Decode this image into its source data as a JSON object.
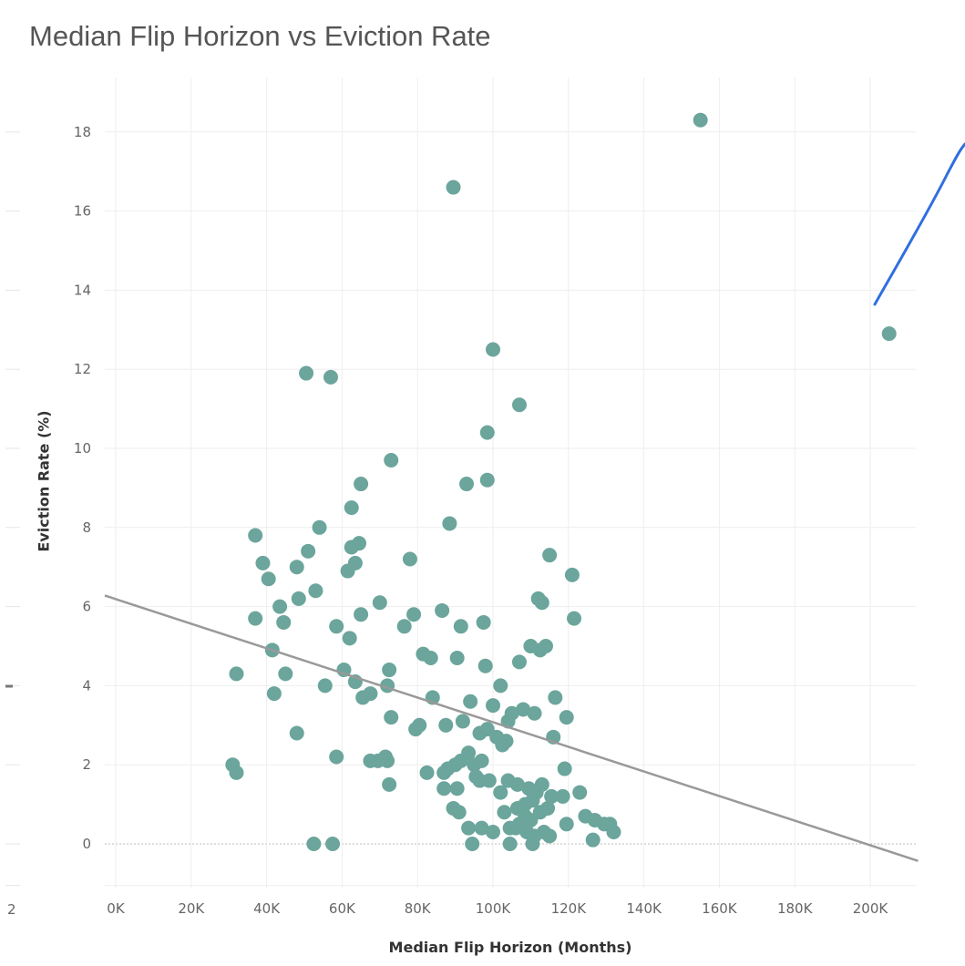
{
  "chart_data": {
    "type": "scatter",
    "title": "Median Flip Horizon vs Eviction Rate",
    "xlabel": "Median Flip Horizon (Months)",
    "ylabel": "Eviction Rate (%)",
    "xlim": [
      -2000,
      218000
    ],
    "ylim": [
      -1,
      19.5
    ],
    "grid": true,
    "x_ticks": [
      0,
      20000,
      40000,
      60000,
      80000,
      100000,
      120000,
      140000,
      160000,
      180000,
      200000
    ],
    "x_tick_labels": [
      "0K",
      "20K",
      "40K",
      "60K",
      "80K",
      "100K",
      "120K",
      "140K",
      "160K",
      "180K",
      "200K"
    ],
    "y_ticks": [
      0,
      2,
      4,
      6,
      8,
      10,
      12,
      14,
      16,
      18
    ],
    "y_tick_labels": [
      "0",
      "2",
      "4",
      "6",
      "8",
      "10",
      "12",
      "14",
      "16",
      "18"
    ],
    "marker_color": "#6ba59c",
    "trendline": {
      "color": "#999999",
      "x": [
        0,
        218000
      ],
      "y": [
        6.27,
        -0.43
      ]
    },
    "edge_labels": [
      "2"
    ],
    "points": [
      [
        155000,
        18.3
      ],
      [
        89500,
        16.6
      ],
      [
        205000,
        12.9
      ],
      [
        100000,
        12.5
      ],
      [
        50500,
        11.9
      ],
      [
        57000,
        11.8
      ],
      [
        107000,
        11.1
      ],
      [
        98500,
        10.4
      ],
      [
        73000,
        9.7
      ],
      [
        65000,
        9.1
      ],
      [
        93000,
        9.1
      ],
      [
        98500,
        9.2
      ],
      [
        62500,
        8.5
      ],
      [
        88500,
        8.1
      ],
      [
        54000,
        8.0
      ],
      [
        37000,
        7.8
      ],
      [
        64500,
        7.6
      ],
      [
        51000,
        7.4
      ],
      [
        62500,
        7.5
      ],
      [
        39000,
        7.1
      ],
      [
        63500,
        7.1
      ],
      [
        78000,
        7.2
      ],
      [
        115000,
        7.3
      ],
      [
        61500,
        6.9
      ],
      [
        48000,
        7.0
      ],
      [
        40500,
        6.7
      ],
      [
        121000,
        6.8
      ],
      [
        48500,
        6.2
      ],
      [
        43500,
        6.0
      ],
      [
        53000,
        6.4
      ],
      [
        70000,
        6.1
      ],
      [
        112000,
        6.2
      ],
      [
        113000,
        6.1
      ],
      [
        37000,
        5.7
      ],
      [
        65000,
        5.8
      ],
      [
        79000,
        5.8
      ],
      [
        86500,
        5.9
      ],
      [
        121500,
        5.7
      ],
      [
        44500,
        5.6
      ],
      [
        58500,
        5.5
      ],
      [
        76500,
        5.5
      ],
      [
        91500,
        5.5
      ],
      [
        97500,
        5.6
      ],
      [
        62000,
        5.2
      ],
      [
        110000,
        5.0
      ],
      [
        112500,
        4.9
      ],
      [
        114000,
        5.0
      ],
      [
        41500,
        4.9
      ],
      [
        81500,
        4.8
      ],
      [
        83500,
        4.7
      ],
      [
        90500,
        4.7
      ],
      [
        98000,
        4.5
      ],
      [
        107000,
        4.6
      ],
      [
        32000,
        4.3
      ],
      [
        45000,
        4.3
      ],
      [
        60500,
        4.4
      ],
      [
        63500,
        4.1
      ],
      [
        72500,
        4.4
      ],
      [
        102000,
        4.0
      ],
      [
        55500,
        4.0
      ],
      [
        72000,
        4.0
      ],
      [
        42000,
        3.8
      ],
      [
        65500,
        3.7
      ],
      [
        67500,
        3.8
      ],
      [
        84000,
        3.7
      ],
      [
        94000,
        3.6
      ],
      [
        116500,
        3.7
      ],
      [
        73000,
        3.2
      ],
      [
        79500,
        2.9
      ],
      [
        80500,
        3.0
      ],
      [
        87500,
        3.0
      ],
      [
        92000,
        3.1
      ],
      [
        96500,
        2.8
      ],
      [
        98500,
        2.9
      ],
      [
        100000,
        3.5
      ],
      [
        104000,
        3.1
      ],
      [
        105000,
        3.3
      ],
      [
        108000,
        3.4
      ],
      [
        111000,
        3.3
      ],
      [
        119500,
        3.2
      ],
      [
        48000,
        2.8
      ],
      [
        101000,
        2.7
      ],
      [
        102500,
        2.5
      ],
      [
        103500,
        2.6
      ],
      [
        116000,
        2.7
      ],
      [
        31000,
        2.0
      ],
      [
        32000,
        1.8
      ],
      [
        58500,
        2.2
      ],
      [
        67500,
        2.1
      ],
      [
        69500,
        2.1
      ],
      [
        71500,
        2.2
      ],
      [
        72000,
        2.1
      ],
      [
        90000,
        2.0
      ],
      [
        91500,
        2.1
      ],
      [
        93500,
        2.3
      ],
      [
        95000,
        2.0
      ],
      [
        97000,
        2.1
      ],
      [
        88000,
        1.9
      ],
      [
        82500,
        1.8
      ],
      [
        87000,
        1.8
      ],
      [
        72500,
        1.5
      ],
      [
        90500,
        1.4
      ],
      [
        96500,
        1.6
      ],
      [
        99000,
        1.6
      ],
      [
        104000,
        1.6
      ],
      [
        106500,
        1.5
      ],
      [
        109500,
        1.4
      ],
      [
        113000,
        1.5
      ],
      [
        119000,
        1.9
      ],
      [
        87000,
        1.4
      ],
      [
        95500,
        1.7
      ],
      [
        102000,
        1.3
      ],
      [
        111500,
        1.3
      ],
      [
        115500,
        1.2
      ],
      [
        118500,
        1.2
      ],
      [
        123000,
        1.3
      ],
      [
        89500,
        0.9
      ],
      [
        91000,
        0.8
      ],
      [
        103000,
        0.8
      ],
      [
        106500,
        0.9
      ],
      [
        108500,
        0.7
      ],
      [
        110000,
        0.6
      ],
      [
        112500,
        0.8
      ],
      [
        114500,
        0.9
      ],
      [
        124500,
        0.7
      ],
      [
        127000,
        0.6
      ],
      [
        129500,
        0.5
      ],
      [
        119500,
        0.5
      ],
      [
        93500,
        0.4
      ],
      [
        97000,
        0.4
      ],
      [
        100000,
        0.3
      ],
      [
        104500,
        0.4
      ],
      [
        107000,
        0.5
      ],
      [
        109000,
        0.3
      ],
      [
        111000,
        0.2
      ],
      [
        113500,
        0.3
      ],
      [
        115000,
        0.2
      ],
      [
        132000,
        0.3
      ],
      [
        126500,
        0.1
      ],
      [
        131000,
        0.5
      ],
      [
        52500,
        0.0
      ],
      [
        57500,
        0.0
      ],
      [
        94500,
        0.0
      ],
      [
        104500,
        0.0
      ],
      [
        110500,
        0.0
      ],
      [
        106000,
        0.4
      ],
      [
        108500,
        1.0
      ],
      [
        110500,
        1.1
      ]
    ]
  }
}
